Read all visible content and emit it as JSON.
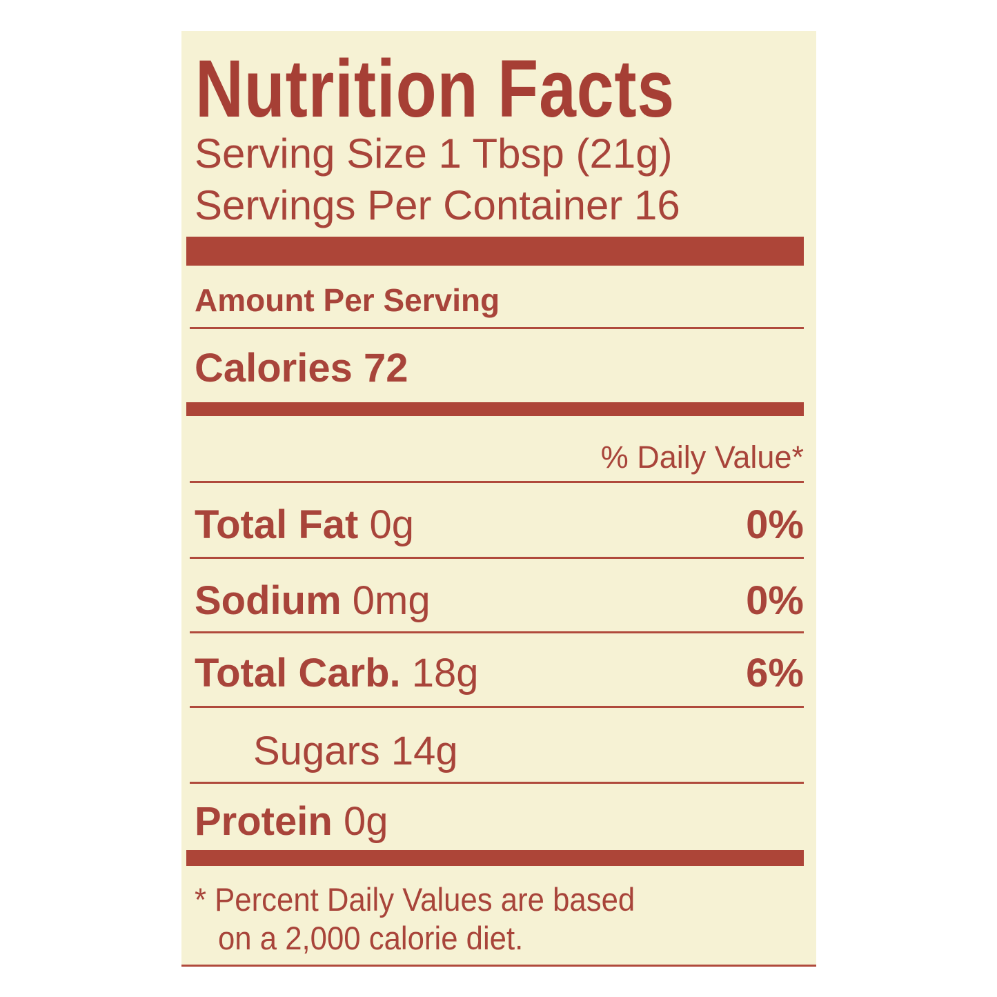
{
  "label": {
    "title": "Nutrition Facts",
    "serving_size": "Serving Size 1 Tbsp (21g)",
    "servings_per_container": "Servings Per Container 16",
    "amount_per_serving": "Amount Per Serving",
    "calories": "Calories 72",
    "daily_value_header": "% Daily Value*",
    "nutrients": [
      {
        "name": "Total Fat",
        "amount": "0g",
        "dv": "0%"
      },
      {
        "name": "Sodium",
        "amount": "0mg",
        "dv": "0%"
      },
      {
        "name": "Total Carb.",
        "amount": "18g",
        "dv": "6%"
      },
      {
        "name": "Sugars",
        "amount": "14g",
        "dv": ""
      },
      {
        "name": "Protein",
        "amount": "0g",
        "dv": ""
      }
    ],
    "footnote_line1": "* Percent Daily Values are based",
    "footnote_line2": "on a 2,000 calorie diet."
  },
  "colors": {
    "text": "#a8443a",
    "background": "#f6f2d4",
    "bars": "#ad4538"
  }
}
